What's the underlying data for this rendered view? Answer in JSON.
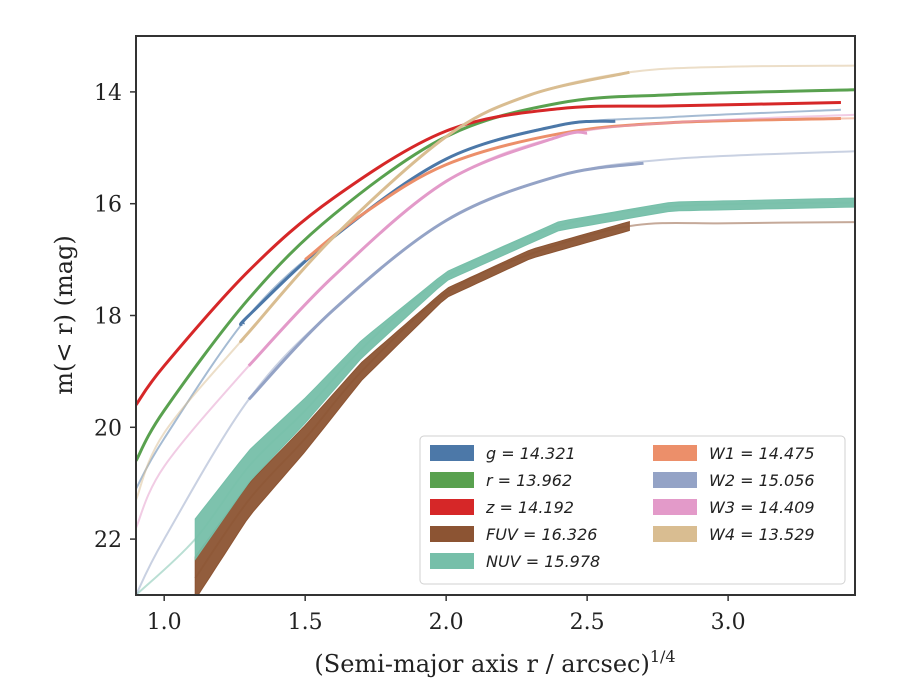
{
  "chart_data": {
    "type": "line",
    "title": "",
    "xlabel": "(Semi-major axis r / arcsec)",
    "xlabel_power": "1/4",
    "ylabel": "m(< r) (mag)",
    "xlim": [
      0.9,
      3.45
    ],
    "ylim": [
      23.0,
      13.0
    ],
    "y_inverted": true,
    "grid": false,
    "legend_placement": "lower-right",
    "legend_columns": 2,
    "x_ticks": [
      1.0,
      1.5,
      2.0,
      2.5,
      3.0
    ],
    "x_tick_labels": [
      "1.0",
      "1.5",
      "2.0",
      "2.5",
      "3.0"
    ],
    "y_ticks": [
      14,
      16,
      18,
      20,
      22
    ],
    "y_tick_labels": [
      "14",
      "16",
      "18",
      "20",
      "22"
    ],
    "series": [
      {
        "key": "g",
        "name": "g = 14.321",
        "color": "#4c78a8",
        "m_total": 14.321,
        "r_max": 3.4,
        "dark_range": [
          1.28,
          2.6
        ],
        "faint_start": 0.9,
        "faint_start_mag": 21.1,
        "points": [
          [
            1.0,
            20.2
          ],
          [
            1.3,
            18.0
          ],
          [
            1.6,
            16.6
          ],
          [
            2.0,
            15.2
          ],
          [
            2.4,
            14.6
          ],
          [
            2.8,
            14.45
          ],
          [
            3.4,
            14.32
          ]
        ]
      },
      {
        "key": "r",
        "name": "r = 13.962",
        "color": "#59a14f",
        "m_total": 13.962,
        "r_max": 3.45,
        "dark_range": [
          0.9,
          3.45
        ],
        "faint_start": 0.9,
        "faint_start_mag": 20.6,
        "points": [
          [
            1.0,
            19.7
          ],
          [
            1.3,
            17.7
          ],
          [
            1.6,
            16.2
          ],
          [
            2.0,
            14.8
          ],
          [
            2.4,
            14.2
          ],
          [
            2.8,
            14.05
          ],
          [
            3.45,
            13.96
          ]
        ]
      },
      {
        "key": "z",
        "name": "z = 14.192",
        "color": "#d62728",
        "m_total": 14.192,
        "r_max": 3.4,
        "dark_range": [
          0.9,
          3.4
        ],
        "faint_start": 0.9,
        "faint_start_mag": 19.6,
        "points": [
          [
            1.0,
            18.9
          ],
          [
            1.3,
            17.2
          ],
          [
            1.6,
            15.9
          ],
          [
            2.0,
            14.7
          ],
          [
            2.4,
            14.3
          ],
          [
            2.8,
            14.25
          ],
          [
            3.4,
            14.19
          ]
        ]
      },
      {
        "key": "FUV",
        "name": "FUV = 16.326",
        "color": "#8c5433",
        "m_total": 16.326,
        "r_max": 3.45,
        "dark_range": [
          1.11,
          2.65
        ],
        "faint_start": 2.65,
        "faint_start_mag": 16.4,
        "band": true,
        "points": [
          [
            1.11,
            22.7
          ],
          [
            1.3,
            21.3
          ],
          [
            1.5,
            20.2
          ],
          [
            1.7,
            19.0
          ],
          [
            2.0,
            17.6
          ],
          [
            2.3,
            16.9
          ],
          [
            2.65,
            16.4
          ],
          [
            3.0,
            16.35
          ],
          [
            3.45,
            16.33
          ]
        ]
      },
      {
        "key": "NUV",
        "name": "NUV = 15.978",
        "color": "#76bfa9",
        "m_total": 15.978,
        "r_max": 3.45,
        "dark_range": [
          1.11,
          3.45
        ],
        "faint_start": 0.9,
        "faint_start_mag": 23.0,
        "band": true,
        "points": [
          [
            1.11,
            22.0
          ],
          [
            1.3,
            20.7
          ],
          [
            1.5,
            19.7
          ],
          [
            1.7,
            18.6
          ],
          [
            2.0,
            17.3
          ],
          [
            2.4,
            16.4
          ],
          [
            2.8,
            16.05
          ],
          [
            3.45,
            15.98
          ]
        ]
      },
      {
        "key": "W1",
        "name": "W1 = 14.475",
        "color": "#ec8f6a",
        "m_total": 14.475,
        "r_max": 3.45,
        "dark_range": [
          1.5,
          3.4
        ],
        "faint_start": 1.5,
        "faint_start_mag": 17.0,
        "points": [
          [
            1.5,
            17.0
          ],
          [
            1.7,
            16.2
          ],
          [
            2.0,
            15.3
          ],
          [
            2.4,
            14.75
          ],
          [
            2.8,
            14.55
          ],
          [
            3.45,
            14.47
          ]
        ]
      },
      {
        "key": "W2",
        "name": "W2 = 15.056",
        "color": "#94a3c6",
        "m_total": 15.056,
        "r_max": 3.45,
        "dark_range": [
          1.3,
          2.7
        ],
        "faint_start": 0.9,
        "faint_start_mag": 23.0,
        "points": [
          [
            1.0,
            22.0
          ],
          [
            1.3,
            19.5
          ],
          [
            1.6,
            17.9
          ],
          [
            2.0,
            16.3
          ],
          [
            2.4,
            15.5
          ],
          [
            2.8,
            15.2
          ],
          [
            3.45,
            15.06
          ]
        ]
      },
      {
        "key": "W3",
        "name": "W3 = 14.409",
        "color": "#e39ac9",
        "m_total": 14.409,
        "r_max": 3.45,
        "dark_range": [
          1.3,
          2.5
        ],
        "faint_start": 0.9,
        "faint_start_mag": 21.8,
        "points": [
          [
            1.0,
            20.7
          ],
          [
            1.3,
            18.9
          ],
          [
            1.6,
            17.3
          ],
          [
            2.0,
            15.6
          ],
          [
            2.4,
            14.8
          ],
          [
            2.8,
            14.55
          ],
          [
            3.45,
            14.41
          ]
        ]
      },
      {
        "key": "W4",
        "name": "W4 = 13.529",
        "color": "#d9bd91",
        "m_total": 13.529,
        "r_max": 3.45,
        "dark_range": [
          1.28,
          2.65
        ],
        "faint_start": 0.9,
        "faint_start_mag": 21.3,
        "points": [
          [
            1.0,
            20.1
          ],
          [
            1.3,
            18.3
          ],
          [
            1.6,
            16.6
          ],
          [
            2.0,
            14.8
          ],
          [
            2.3,
            14.05
          ],
          [
            2.65,
            13.65
          ],
          [
            3.0,
            13.55
          ],
          [
            3.45,
            13.53
          ]
        ]
      }
    ]
  },
  "legend": {
    "items": [
      {
        "label": "g = 14.321",
        "color": "#4c78a8"
      },
      {
        "label": "r = 13.962",
        "color": "#59a14f"
      },
      {
        "label": "z = 14.192",
        "color": "#d62728"
      },
      {
        "label": "FUV = 16.326",
        "color": "#8c5433"
      },
      {
        "label": "NUV = 15.978",
        "color": "#76bfa9"
      },
      {
        "label": "W1 = 14.475",
        "color": "#ec8f6a"
      },
      {
        "label": "W2 = 15.056",
        "color": "#94a3c6"
      },
      {
        "label": "W3 = 14.409",
        "color": "#e39ac9"
      },
      {
        "label": "W4 = 13.529",
        "color": "#d9bd91"
      }
    ]
  }
}
